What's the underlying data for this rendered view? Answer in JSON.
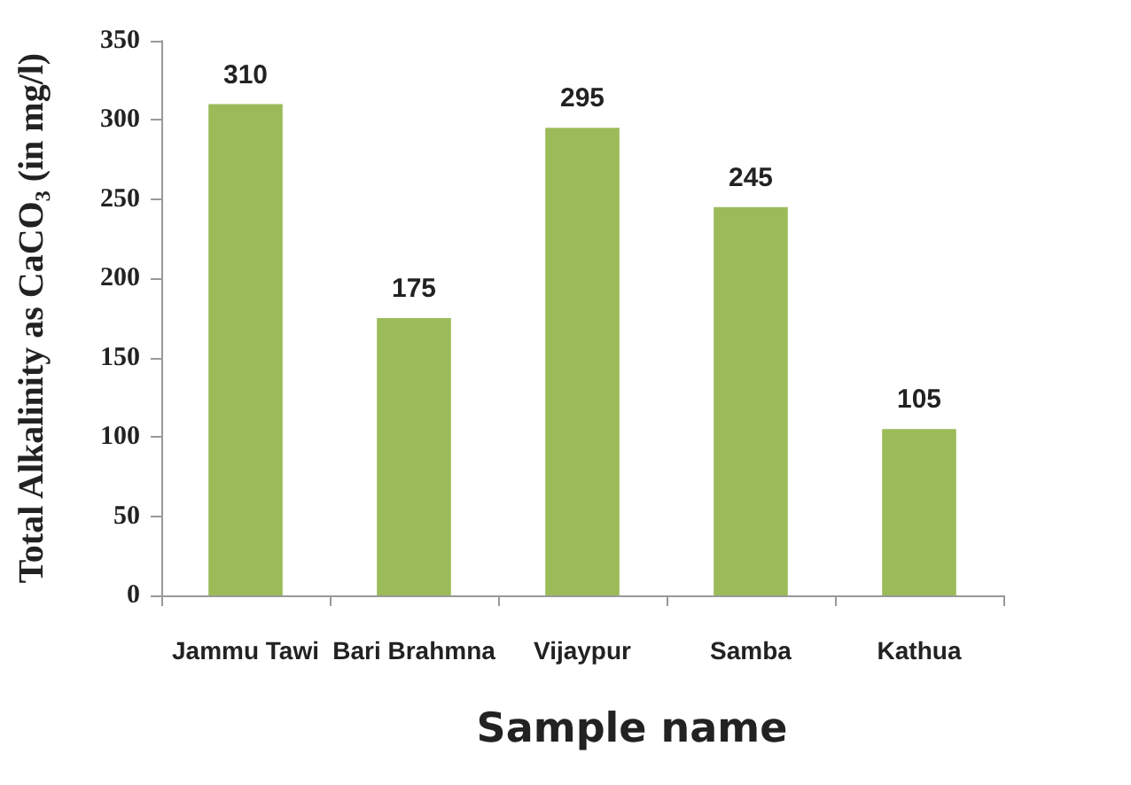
{
  "chart_data": {
    "type": "bar",
    "categories": [
      "Jammu Tawi",
      "Bari Brahmna",
      "Vijaypur",
      "Samba",
      "Kathua"
    ],
    "values": [
      310,
      175,
      295,
      245,
      105
    ],
    "color": "#9bbb59",
    "xlabel": "Sample name",
    "ylabel": "Total Alkalinity as CaCO₃ (in mg/l)",
    "ylim": [
      0,
      350
    ],
    "yticks": [
      0,
      50,
      100,
      150,
      200,
      250,
      300,
      350
    ],
    "data_labels": true
  }
}
